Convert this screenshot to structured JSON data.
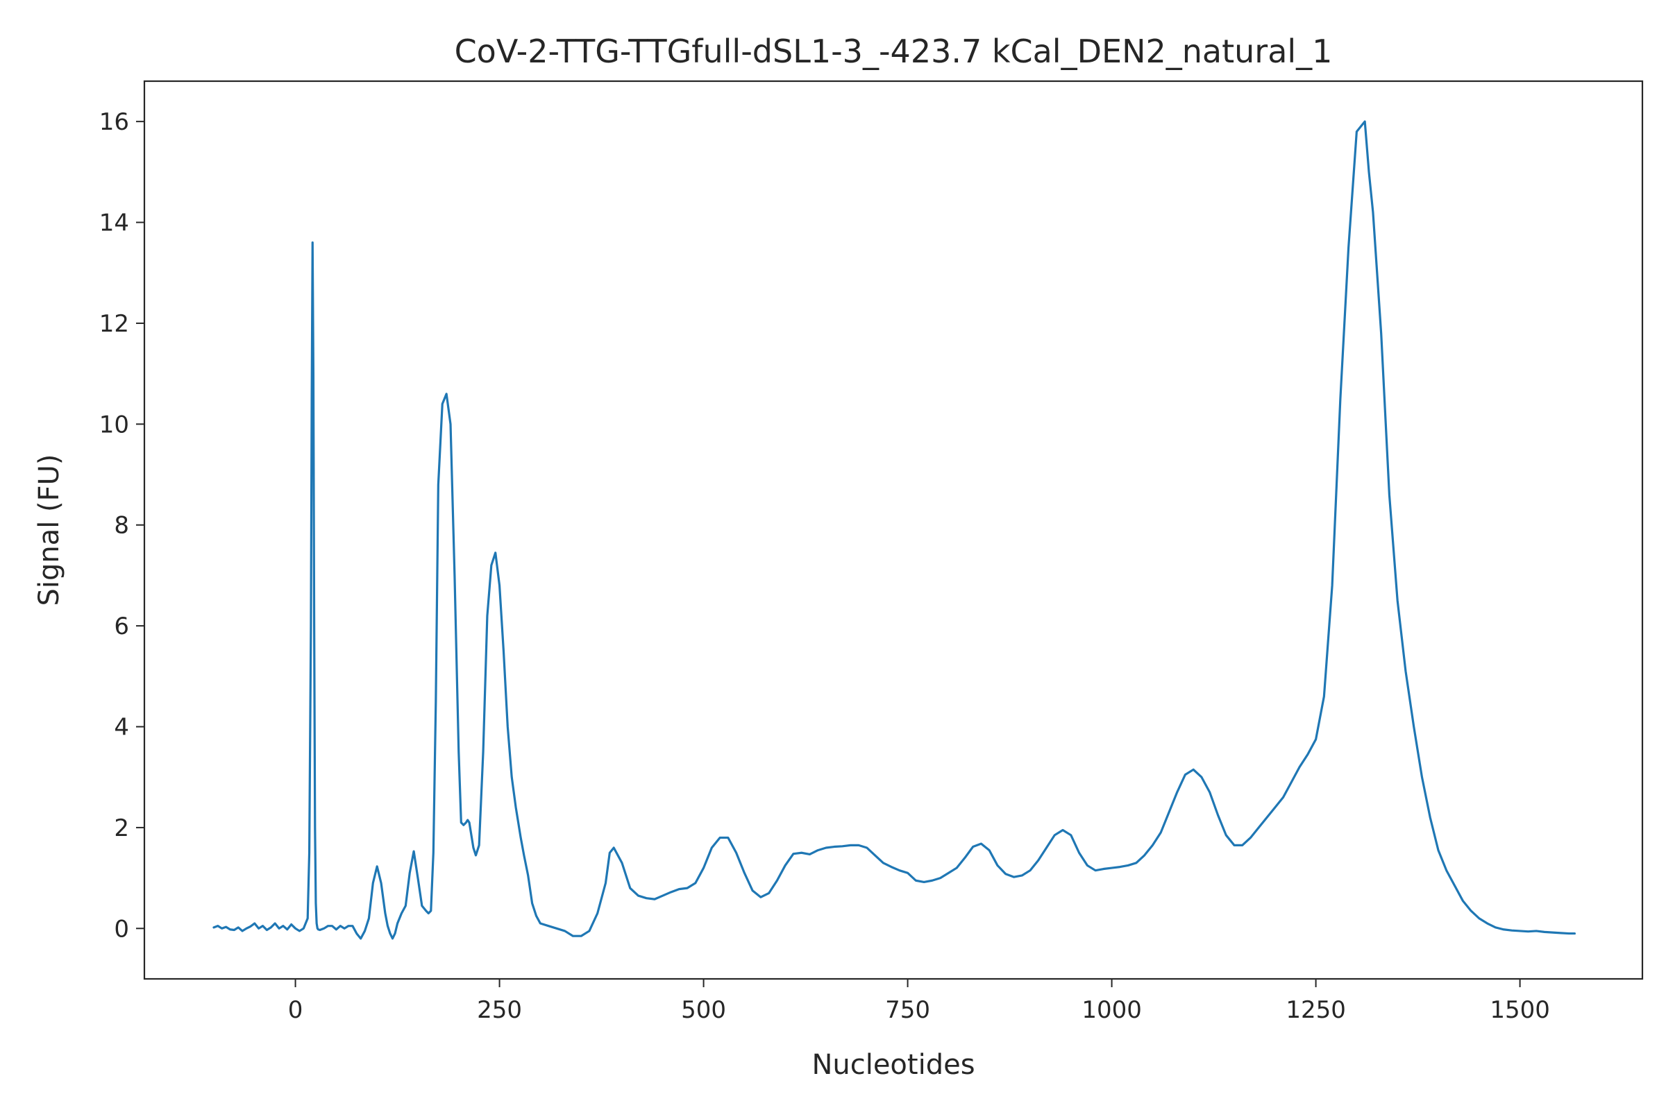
{
  "chart_data": {
    "type": "line",
    "title": "CoV-2-TTG-TTGfull-dSL1-3_-423.7 kCal_DEN2_natural_1",
    "xlabel": "Nucleotides",
    "ylabel": "Signal (FU)",
    "xlim": [
      -185,
      1650
    ],
    "ylim": [
      -1.0,
      16.8
    ],
    "x_ticks": [
      0,
      250,
      500,
      750,
      1000,
      1250,
      1500
    ],
    "x_tick_labels": [
      "0",
      "250",
      "500",
      "750",
      "1000",
      "1250",
      "1500"
    ],
    "y_ticks": [
      0,
      2,
      4,
      6,
      8,
      10,
      12,
      14,
      16
    ],
    "y_tick_labels": [
      "0",
      "2",
      "4",
      "6",
      "8",
      "10",
      "12",
      "14",
      "16"
    ],
    "grid": false,
    "legend": false,
    "series_color": "#1f77b4",
    "series": [
      {
        "x": [
          -100,
          -95,
          -90,
          -85,
          -80,
          -75,
          -70,
          -65,
          -60,
          -55,
          -50,
          -45,
          -40,
          -35,
          -30,
          -25,
          -20,
          -15,
          -10,
          -5,
          0,
          5,
          10,
          15,
          17,
          19,
          20,
          21,
          22,
          23,
          24,
          25,
          26,
          27,
          28,
          30,
          35,
          40,
          45,
          50,
          55,
          60,
          65,
          70,
          75,
          80,
          85,
          90,
          95,
          100,
          105,
          110,
          113,
          116,
          119,
          122,
          125,
          130,
          135,
          140,
          145,
          150,
          155,
          160,
          163,
          166,
          169,
          172,
          175,
          180,
          185,
          190,
          195,
          200,
          203,
          206,
          209,
          211,
          213,
          215,
          218,
          221,
          225,
          230,
          235,
          240,
          245,
          250,
          255,
          260,
          265,
          270,
          273,
          276,
          280,
          285,
          290,
          295,
          300,
          310,
          320,
          330,
          340,
          350,
          360,
          370,
          380,
          385,
          390,
          400,
          410,
          420,
          430,
          440,
          450,
          460,
          470,
          480,
          490,
          500,
          510,
          520,
          530,
          540,
          550,
          560,
          570,
          580,
          590,
          600,
          610,
          620,
          630,
          640,
          650,
          660,
          670,
          680,
          690,
          700,
          710,
          720,
          730,
          740,
          750,
          760,
          770,
          780,
          790,
          800,
          810,
          820,
          830,
          840,
          850,
          860,
          870,
          880,
          890,
          900,
          910,
          920,
          930,
          940,
          950,
          960,
          970,
          980,
          990,
          1000,
          1010,
          1020,
          1030,
          1040,
          1050,
          1060,
          1070,
          1080,
          1090,
          1100,
          1110,
          1120,
          1130,
          1140,
          1150,
          1160,
          1170,
          1180,
          1190,
          1200,
          1210,
          1220,
          1230,
          1240,
          1250,
          1260,
          1270,
          1280,
          1290,
          1300,
          1305,
          1310,
          1315,
          1320,
          1330,
          1340,
          1350,
          1360,
          1370,
          1380,
          1390,
          1400,
          1410,
          1420,
          1430,
          1440,
          1450,
          1460,
          1470,
          1480,
          1490,
          1500,
          1510,
          1520,
          1530,
          1540,
          1550,
          1560,
          1567
        ],
        "y": [
          0.02,
          0.05,
          0.0,
          0.03,
          -0.02,
          -0.03,
          0.02,
          -0.05,
          0.0,
          0.04,
          0.1,
          0.0,
          0.05,
          -0.03,
          0.02,
          0.1,
          0.0,
          0.05,
          -0.02,
          0.08,
          0.0,
          -0.05,
          0.0,
          0.2,
          1.5,
          6.0,
          10.5,
          13.6,
          11.0,
          6.0,
          2.0,
          0.5,
          0.1,
          0.0,
          -0.02,
          -0.03,
          0.0,
          0.05,
          0.05,
          -0.02,
          0.05,
          0.0,
          0.05,
          0.05,
          -0.1,
          -0.2,
          -0.05,
          0.2,
          0.9,
          1.23,
          0.9,
          0.3,
          0.05,
          -0.1,
          -0.2,
          -0.1,
          0.1,
          0.3,
          0.45,
          1.1,
          1.53,
          1.0,
          0.45,
          0.35,
          0.3,
          0.35,
          1.5,
          4.5,
          8.8,
          10.4,
          10.6,
          10.0,
          7.0,
          3.5,
          2.1,
          2.05,
          2.1,
          2.15,
          2.1,
          1.9,
          1.6,
          1.45,
          1.65,
          3.5,
          6.2,
          7.2,
          7.45,
          6.8,
          5.5,
          4.0,
          3.0,
          2.4,
          2.1,
          1.8,
          1.45,
          1.05,
          0.5,
          0.25,
          0.1,
          0.05,
          0.0,
          -0.05,
          -0.15,
          -0.15,
          -0.05,
          0.3,
          0.9,
          1.5,
          1.6,
          1.3,
          0.8,
          0.65,
          0.6,
          0.58,
          0.65,
          0.72,
          0.78,
          0.8,
          0.9,
          1.2,
          1.6,
          1.8,
          1.8,
          1.5,
          1.1,
          0.75,
          0.62,
          0.7,
          0.95,
          1.25,
          1.48,
          1.5,
          1.47,
          1.55,
          1.6,
          1.62,
          1.63,
          1.65,
          1.65,
          1.6,
          1.45,
          1.3,
          1.22,
          1.15,
          1.1,
          0.95,
          0.92,
          0.95,
          1.0,
          1.1,
          1.2,
          1.4,
          1.62,
          1.68,
          1.55,
          1.25,
          1.08,
          1.02,
          1.05,
          1.15,
          1.35,
          1.6,
          1.85,
          1.95,
          1.85,
          1.5,
          1.25,
          1.15,
          1.18,
          1.2,
          1.22,
          1.25,
          1.3,
          1.45,
          1.65,
          1.9,
          2.3,
          2.7,
          3.05,
          3.15,
          3.0,
          2.7,
          2.25,
          1.85,
          1.65,
          1.65,
          1.8,
          2.0,
          2.2,
          2.4,
          2.6,
          2.9,
          3.2,
          3.45,
          3.75,
          4.6,
          6.8,
          10.5,
          13.5,
          15.8,
          15.9,
          16.0,
          15.0,
          14.2,
          11.8,
          8.6,
          6.5,
          5.1,
          4.0,
          3.0,
          2.2,
          1.55,
          1.15,
          0.85,
          0.55,
          0.35,
          0.2,
          0.1,
          0.02,
          -0.02,
          -0.04,
          -0.05,
          -0.06,
          -0.05,
          -0.07,
          -0.08,
          -0.09,
          -0.1,
          -0.1
        ]
      }
    ]
  }
}
